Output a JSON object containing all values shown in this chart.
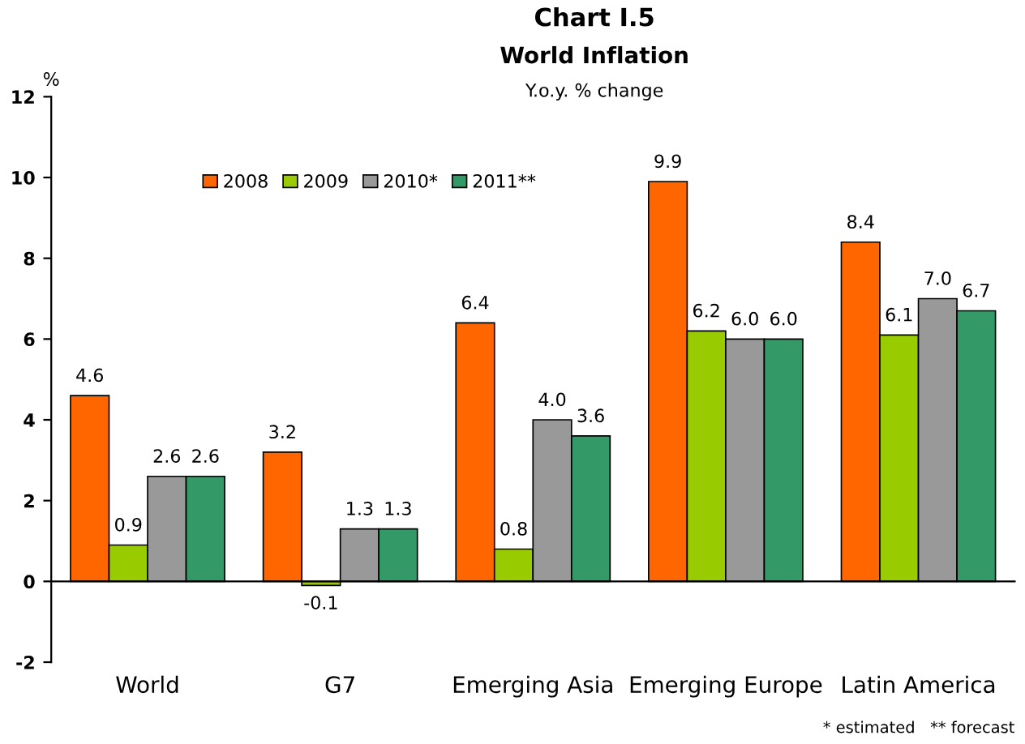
{
  "chart_data": {
    "type": "bar",
    "title": "Chart I.5",
    "subtitle": "World Inflation",
    "ylabel": "%",
    "annotations": [
      "Y.o.y. % change",
      "* estimated   ** forecast"
    ],
    "categories": [
      "World",
      "G7",
      "Emerging Asia",
      "Emerging Europe",
      "Latin America"
    ],
    "series": [
      {
        "name": "2008",
        "color": "#ff6600",
        "values": [
          4.6,
          3.2,
          6.4,
          9.9,
          8.4
        ],
        "value_labels": [
          "4.6",
          "3.2",
          "6.4",
          "9.9",
          "8.4"
        ]
      },
      {
        "name": "2009",
        "color": "#99cc00",
        "values": [
          0.9,
          -0.1,
          0.8,
          6.2,
          6.1
        ],
        "value_labels": [
          "0.9",
          "-0.1",
          "0.8",
          "6.2",
          "6.1"
        ]
      },
      {
        "name": "2010*",
        "color": "#999999",
        "values": [
          2.6,
          1.3,
          4.0,
          6.0,
          7.0
        ],
        "value_labels": [
          "2.6",
          "1.3",
          "4.0",
          "6.0",
          "7.0"
        ]
      },
      {
        "name": "2011**",
        "color": "#339966",
        "values": [
          2.6,
          1.3,
          3.6,
          6.0,
          6.7
        ],
        "value_labels": [
          "2.6",
          "1.3",
          "3.6",
          "6.0",
          "6.7"
        ]
      }
    ],
    "ylim": [
      -2,
      12
    ],
    "yticks": [
      -2,
      0,
      2,
      4,
      6,
      8,
      10,
      12
    ],
    "legend": "top left"
  }
}
